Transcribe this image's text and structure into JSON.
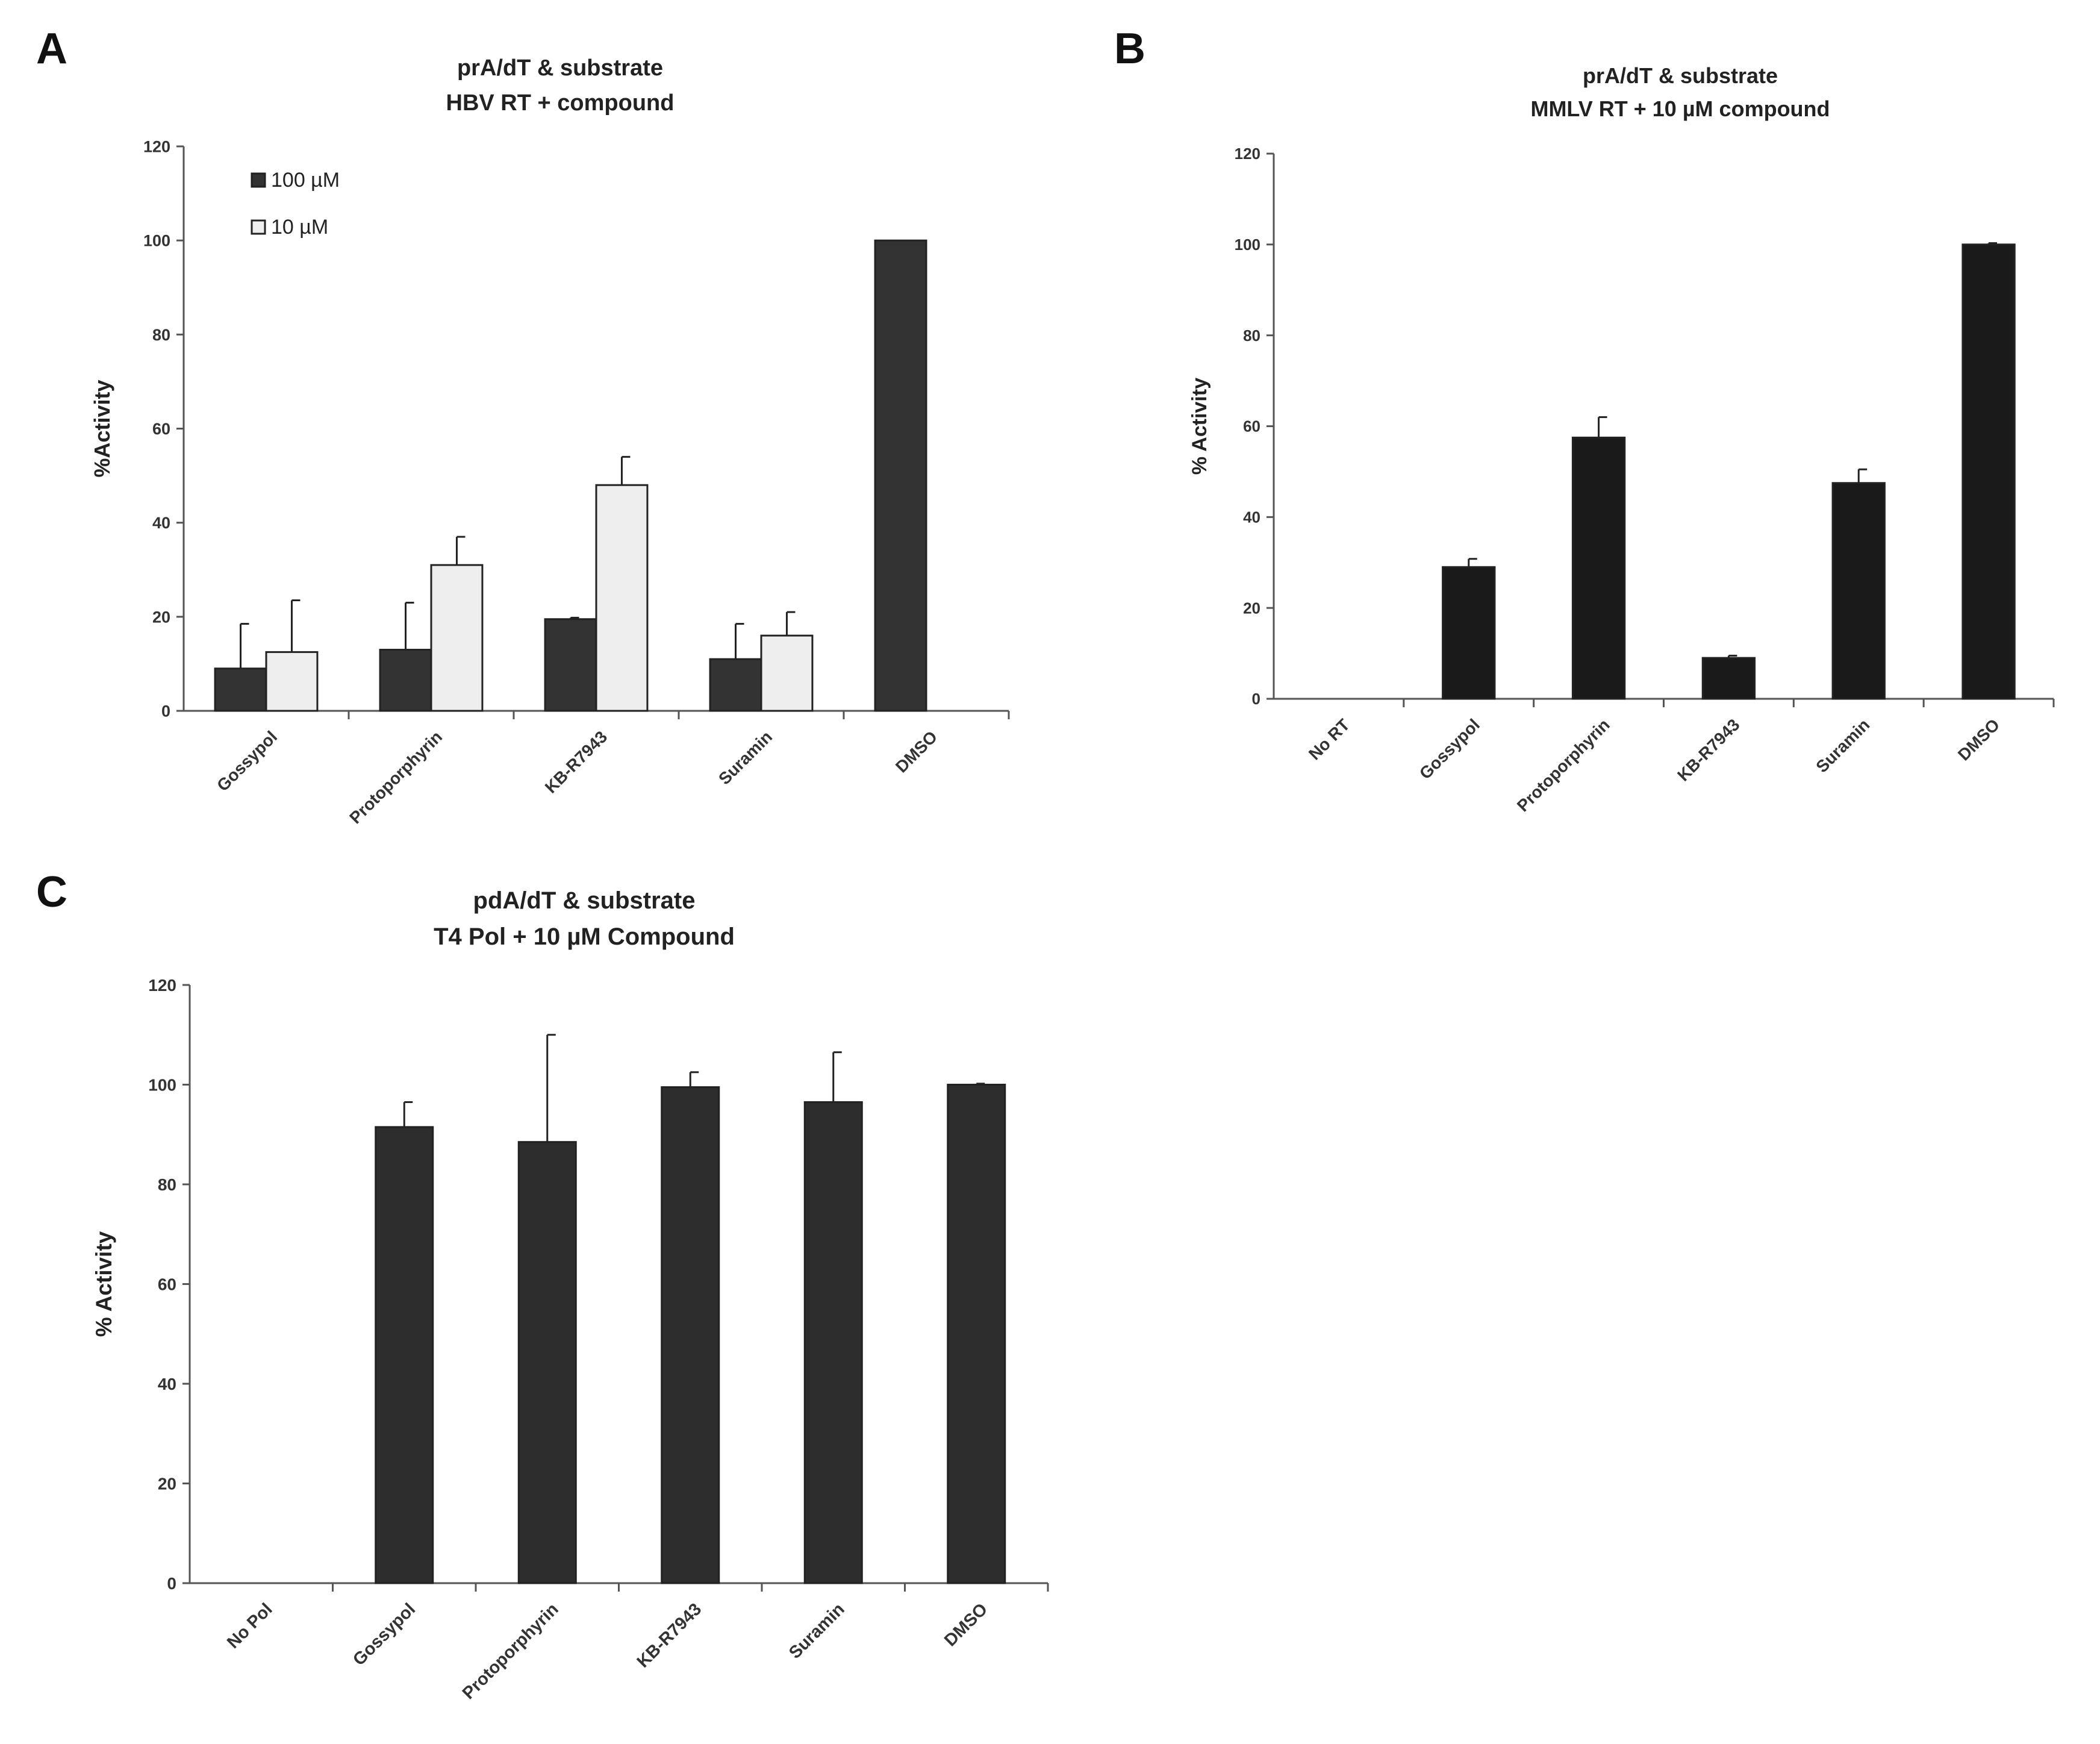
{
  "panels": [
    "A",
    "B",
    "C"
  ],
  "chart_data": [
    {
      "panel": "A",
      "type": "bar",
      "title": [
        "prA/dT & substrate",
        "HBV RT + compound"
      ],
      "xlabel": "",
      "ylabel": "%Activity",
      "ylim": [
        0,
        120
      ],
      "yticks": [
        0,
        20,
        40,
        60,
        80,
        100,
        120
      ],
      "categories": [
        "Gossypol",
        "Protoporphyrin",
        "KB-R7943",
        "Suramin",
        "DMSO"
      ],
      "series": [
        {
          "name": "100 µM",
          "color": "#333333",
          "values": [
            9,
            13,
            19.5,
            11,
            100
          ],
          "errors": [
            9.5,
            10,
            0.3,
            7.5,
            0
          ]
        },
        {
          "name": "10 µM",
          "color": "#eeeeee",
          "values": [
            12.5,
            31,
            48,
            16,
            null
          ],
          "errors": [
            11,
            6,
            6,
            5,
            null
          ]
        }
      ],
      "legend": "top-left"
    },
    {
      "panel": "B",
      "type": "bar",
      "title": [
        "prA/dT & substrate",
        "MMLV RT + 10 µM compound"
      ],
      "xlabel": "",
      "ylabel": "% Activity",
      "ylim": [
        0,
        120
      ],
      "yticks": [
        0,
        20,
        40,
        60,
        80,
        100,
        120
      ],
      "categories": [
        "No RT",
        "Gossypol",
        "Protoporphyrin",
        "KB-R7943",
        "Suramin",
        "DMSO"
      ],
      "series": [
        {
          "name": "10 µM compound",
          "color": "#1a1a1a",
          "values": [
            0,
            29,
            57.5,
            9,
            47.5,
            100
          ],
          "errors": [
            0,
            1.8,
            4.5,
            0.5,
            3,
            0.3
          ]
        }
      ]
    },
    {
      "panel": "C",
      "type": "bar",
      "title": [
        "pdA/dT & substrate",
        "T4 Pol + 10 µM Compound"
      ],
      "xlabel": "",
      "ylabel": "% Activity",
      "ylim": [
        0,
        120
      ],
      "yticks": [
        0,
        20,
        40,
        60,
        80,
        100,
        120
      ],
      "categories": [
        "No Pol",
        "Gossypol",
        "Protoporphyrin",
        "KB-R7943",
        "Suramin",
        "DMSO"
      ],
      "series": [
        {
          "name": "10 µM Compound",
          "color": "#2d2d2d",
          "values": [
            0,
            91.5,
            88.5,
            99.5,
            96.5,
            100
          ],
          "errors": [
            0,
            5,
            21.5,
            3,
            10,
            0.2
          ]
        }
      ]
    }
  ]
}
